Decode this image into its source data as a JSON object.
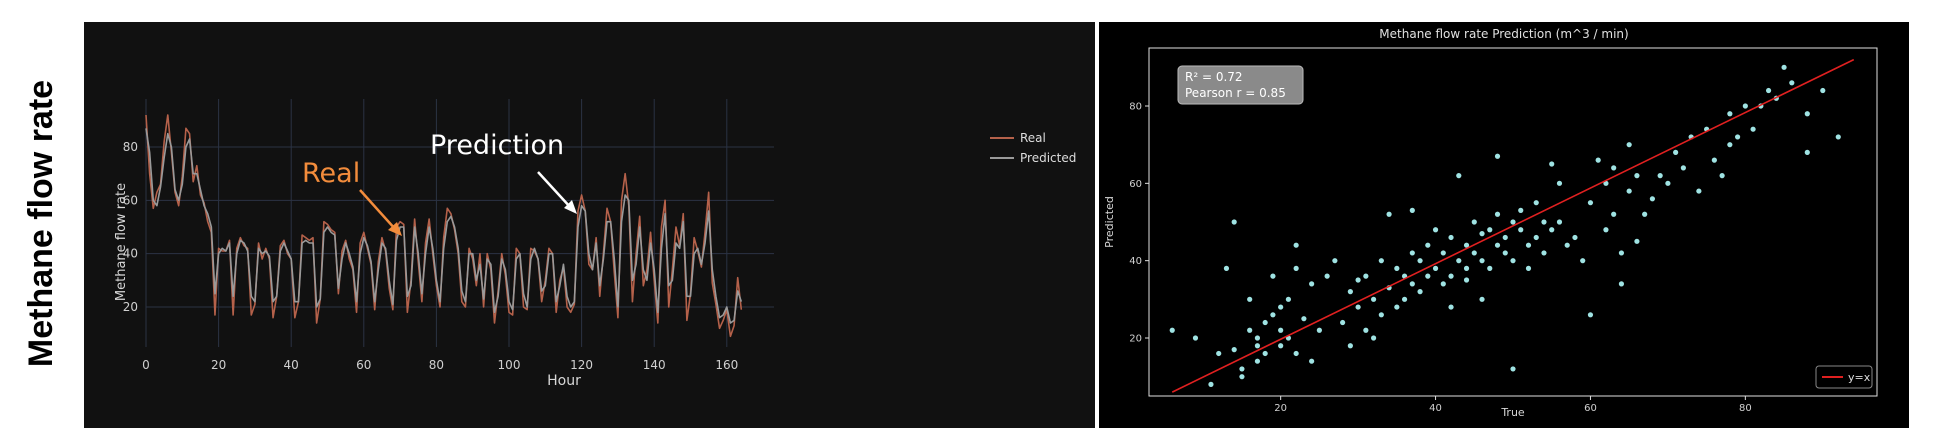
{
  "row_label": "Methane flow rate",
  "chart_data": [
    {
      "type": "line",
      "title": "",
      "xlabel": "Hour",
      "ylabel": "Methane flow rate",
      "xlim": [
        0,
        173
      ],
      "ylim": [
        5,
        98
      ],
      "xticks": [
        0,
        20,
        40,
        60,
        80,
        100,
        120,
        140,
        160
      ],
      "yticks": [
        20,
        40,
        60,
        80
      ],
      "grid": true,
      "legend": "top-right",
      "annotations": [
        {
          "text": "Real",
          "color": "#F28C3C"
        },
        {
          "text": "Prediction",
          "color": "#FFFFFF"
        }
      ],
      "series": [
        {
          "name": "Real",
          "color": "#B5614A",
          "values": [
            92,
            70,
            57,
            63,
            66,
            82,
            92,
            78,
            63,
            58,
            69,
            87,
            85,
            67,
            73,
            62,
            59,
            52,
            48,
            17,
            42,
            41,
            41,
            45,
            17,
            42,
            46,
            43,
            42,
            17,
            21,
            44,
            38,
            42,
            38,
            16,
            24,
            43,
            45,
            40,
            38,
            16,
            22,
            47,
            46,
            45,
            46,
            14,
            23,
            52,
            51,
            49,
            48,
            25,
            41,
            45,
            38,
            34,
            18,
            44,
            48,
            42,
            36,
            19,
            37,
            46,
            41,
            27,
            19,
            50,
            52,
            51,
            18,
            30,
            53,
            37,
            22,
            44,
            53,
            40,
            28,
            20,
            46,
            57,
            55,
            49,
            40,
            22,
            20,
            42,
            38,
            28,
            40,
            20,
            40,
            34,
            14,
            26,
            40,
            32,
            18,
            17,
            42,
            40,
            20,
            19,
            42,
            41,
            38,
            22,
            30,
            42,
            40,
            18,
            30,
            35,
            20,
            18,
            21,
            56,
            62,
            56,
            36,
            34,
            46,
            24,
            40,
            57,
            52,
            33,
            16,
            60,
            70,
            58,
            22,
            40,
            54,
            28,
            34,
            48,
            30,
            14,
            50,
            60,
            20,
            34,
            50,
            43,
            55,
            15,
            25,
            46,
            41,
            35,
            48,
            63,
            29,
            21,
            12,
            15,
            19,
            9,
            13,
            31,
            19
          ]
        },
        {
          "name": "Predicted",
          "color": "#9A9A9A",
          "values": [
            87,
            78,
            60,
            58,
            65,
            76,
            85,
            80,
            64,
            60,
            66,
            80,
            83,
            70,
            70,
            64,
            58,
            55,
            50,
            25,
            40,
            42,
            41,
            44,
            24,
            40,
            45,
            44,
            41,
            24,
            22,
            42,
            40,
            41,
            39,
            22,
            24,
            41,
            44,
            41,
            38,
            22,
            22,
            44,
            45,
            44,
            44,
            20,
            23,
            48,
            50,
            48,
            47,
            27,
            38,
            44,
            40,
            35,
            22,
            40,
            46,
            43,
            37,
            22,
            34,
            44,
            42,
            30,
            21,
            45,
            50,
            50,
            24,
            28,
            50,
            40,
            25,
            40,
            50,
            42,
            30,
            22,
            42,
            52,
            54,
            50,
            42,
            26,
            22,
            40,
            40,
            30,
            36,
            23,
            38,
            36,
            18,
            24,
            38,
            34,
            22,
            19,
            38,
            40,
            25,
            20,
            38,
            42,
            38,
            26,
            28,
            40,
            40,
            22,
            28,
            36,
            24,
            20,
            22,
            50,
            58,
            56,
            40,
            34,
            44,
            28,
            38,
            52,
            52,
            38,
            20,
            52,
            62,
            60,
            30,
            36,
            50,
            34,
            30,
            44,
            34,
            18,
            42,
            55,
            28,
            30,
            44,
            42,
            52,
            24,
            24,
            40,
            42,
            36,
            44,
            56,
            34,
            24,
            16,
            17,
            20,
            14,
            15,
            26,
            22
          ]
        }
      ]
    },
    {
      "type": "scatter",
      "title": "Methane flow rate Prediction (m^3 / min)",
      "xlabel": "True",
      "ylabel": "Predicted",
      "xlim": [
        3,
        97
      ],
      "ylim": [
        5,
        95
      ],
      "xticks": [
        20,
        40,
        60,
        80
      ],
      "yticks": [
        20,
        40,
        60,
        80
      ],
      "grid": false,
      "legend": "bottom-right",
      "stats": [
        "R² = 0.72",
        "Pearson r = 0.85"
      ],
      "point_color": "#9FE3E3",
      "line": {
        "name": "y=x",
        "color": "#E02020",
        "x": [
          6,
          94
        ],
        "y": [
          6,
          92
        ]
      },
      "points": [
        [
          6,
          22
        ],
        [
          9,
          20
        ],
        [
          11,
          8
        ],
        [
          12,
          16
        ],
        [
          13,
          38
        ],
        [
          14,
          50
        ],
        [
          14,
          17
        ],
        [
          15,
          12
        ],
        [
          16,
          30
        ],
        [
          16,
          22
        ],
        [
          17,
          20
        ],
        [
          17,
          14
        ],
        [
          17,
          18
        ],
        [
          18,
          24
        ],
        [
          18,
          16
        ],
        [
          19,
          26
        ],
        [
          19,
          36
        ],
        [
          20,
          28
        ],
        [
          20,
          22
        ],
        [
          20,
          18
        ],
        [
          21,
          30
        ],
        [
          21,
          20
        ],
        [
          22,
          38
        ],
        [
          22,
          16
        ],
        [
          23,
          25
        ],
        [
          24,
          14
        ],
        [
          25,
          22
        ],
        [
          26,
          36
        ],
        [
          27,
          40
        ],
        [
          28,
          24
        ],
        [
          29,
          32
        ],
        [
          29,
          18
        ],
        [
          30,
          35
        ],
        [
          30,
          28
        ],
        [
          31,
          36
        ],
        [
          31,
          22
        ],
        [
          32,
          30
        ],
        [
          33,
          26
        ],
        [
          33,
          40
        ],
        [
          34,
          33
        ],
        [
          34,
          52
        ],
        [
          35,
          28
        ],
        [
          35,
          38
        ],
        [
          36,
          30
        ],
        [
          36,
          36
        ],
        [
          37,
          42
        ],
        [
          37,
          34
        ],
        [
          37,
          53
        ],
        [
          38,
          40
        ],
        [
          38,
          32
        ],
        [
          39,
          44
        ],
        [
          39,
          36
        ],
        [
          40,
          38
        ],
        [
          40,
          48
        ],
        [
          41,
          42
        ],
        [
          41,
          34
        ],
        [
          42,
          36
        ],
        [
          42,
          46
        ],
        [
          43,
          40
        ],
        [
          43,
          62
        ],
        [
          44,
          38
        ],
        [
          44,
          44
        ],
        [
          44,
          35
        ],
        [
          45,
          50
        ],
        [
          45,
          42
        ],
        [
          46,
          47
        ],
        [
          46,
          40
        ],
        [
          46,
          30
        ],
        [
          47,
          48
        ],
        [
          47,
          38
        ],
        [
          48,
          52
        ],
        [
          48,
          44
        ],
        [
          48,
          67
        ],
        [
          49,
          46
        ],
        [
          49,
          42
        ],
        [
          50,
          50
        ],
        [
          50,
          40
        ],
        [
          51,
          48
        ],
        [
          51,
          53
        ],
        [
          52,
          44
        ],
        [
          52,
          38
        ],
        [
          53,
          55
        ],
        [
          53,
          46
        ],
        [
          54,
          50
        ],
        [
          54,
          42
        ],
        [
          55,
          48
        ],
        [
          55,
          65
        ],
        [
          56,
          60
        ],
        [
          56,
          50
        ],
        [
          57,
          44
        ],
        [
          58,
          46
        ],
        [
          59,
          40
        ],
        [
          60,
          55
        ],
        [
          61,
          66
        ],
        [
          62,
          60
        ],
        [
          62,
          48
        ],
        [
          63,
          64
        ],
        [
          63,
          52
        ],
        [
          64,
          42
        ],
        [
          64,
          34
        ],
        [
          65,
          70
        ],
        [
          65,
          58
        ],
        [
          66,
          62
        ],
        [
          66,
          45
        ],
        [
          67,
          52
        ],
        [
          68,
          56
        ],
        [
          69,
          62
        ],
        [
          70,
          60
        ],
        [
          71,
          68
        ],
        [
          72,
          64
        ],
        [
          73,
          72
        ],
        [
          74,
          58
        ],
        [
          75,
          74
        ],
        [
          76,
          66
        ],
        [
          77,
          62
        ],
        [
          78,
          78
        ],
        [
          79,
          72
        ],
        [
          80,
          80
        ],
        [
          81,
          74
        ],
        [
          82,
          80
        ],
        [
          83,
          84
        ],
        [
          84,
          82
        ],
        [
          85,
          90
        ],
        [
          86,
          86
        ],
        [
          88,
          68
        ],
        [
          90,
          84
        ],
        [
          92,
          72
        ],
        [
          78,
          70
        ],
        [
          88,
          78
        ],
        [
          50,
          12
        ],
        [
          42,
          28
        ],
        [
          32,
          20
        ],
        [
          24,
          34
        ],
        [
          15,
          10
        ],
        [
          22,
          44
        ],
        [
          60,
          26
        ]
      ]
    }
  ]
}
